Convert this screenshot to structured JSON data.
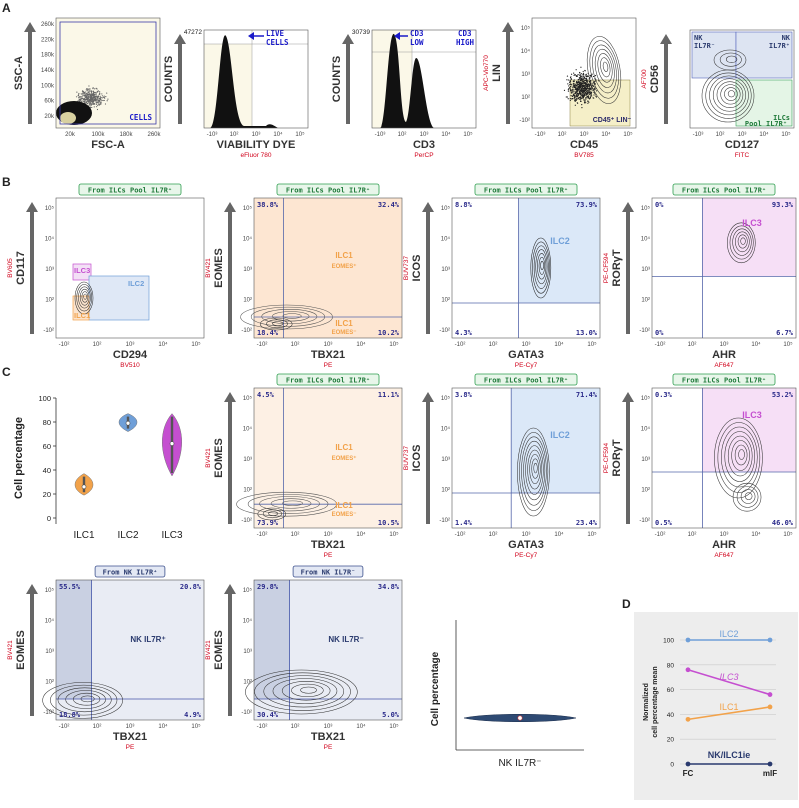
{
  "panel_letters": [
    "A",
    "B",
    "C",
    "D"
  ],
  "colors": {
    "ilc1": "#f2a24a",
    "ilc2": "#6f9fd8",
    "ilc3": "#c54fd0",
    "nk": "#2a3a6e",
    "red_label": "#d0021b",
    "blue_label": "#1a1ac9",
    "green_box": "#2e9e4f"
  },
  "panels": {
    "A": [
      {
        "yaxis": "SSC-A",
        "xaxis": "FSC-A",
        "yticks": [
          "260k",
          "220k",
          "180k",
          "140k",
          "100k",
          "60k",
          "20k"
        ],
        "xticks": [
          "20k",
          "100k",
          "180k",
          "260k"
        ],
        "gate": "CELLS"
      },
      {
        "yaxis": "COUNTS",
        "xaxis": "VIABILITY DYE",
        "sublabel": "eFluor 780",
        "ymax": "47272",
        "gate": "LIVE CELLS",
        "xticks": [
          "-10³",
          "10²",
          "10³",
          "10⁴",
          "10⁵"
        ]
      },
      {
        "yaxis": "COUNTS",
        "xaxis": "CD3",
        "sublabel": "PerCP",
        "ymax": "30739",
        "gate_low": "CD3 LOW",
        "gate_high": "CD3 HIGH",
        "xticks": [
          "-10³",
          "10²",
          "10³",
          "10⁴",
          "10⁵"
        ]
      },
      {
        "yaxis": "LIN",
        "ysublabel": "APC-Vio770",
        "xaxis": "CD45",
        "sublabel": "BV785",
        "gate": "CD45⁺ LIN⁻",
        "xticks": [
          "-10³",
          "10²",
          "10³",
          "10⁴",
          "10⁵"
        ]
      },
      {
        "yaxis": "CD56",
        "ysublabel": "AF700",
        "xaxis": "CD127",
        "sublabel": "FITC",
        "gate_nk_neg": "NK IL7R⁻",
        "gate_nk_pos": "NK IL7R⁺",
        "gate_pool": "Pool IL7R⁺",
        "gate_ilcs": "ILCs",
        "xticks": [
          "-10³",
          "10²",
          "10³",
          "10⁴",
          "10⁵"
        ]
      }
    ],
    "B": [
      {
        "header": "From ILCs Pool IL7R⁺",
        "yaxis": "CD117",
        "ysublabel": "BV605",
        "xaxis": "CD294",
        "sublabel": "BV510",
        "gates": [
          "ILC3",
          "ILC2",
          "ILC1"
        ]
      },
      {
        "header": "From ILCs Pool IL7R⁺",
        "yaxis": "EOMES",
        "ysublabel": "BV421",
        "xaxis": "TBX21",
        "sublabel": "PE",
        "q": [
          "38.8%",
          "32.4%",
          "18.4%",
          "10.2%"
        ],
        "gate1": "ILC1 EOMES⁺",
        "gate2": "ILC1 EOMES⁻"
      },
      {
        "header": "From ILCs Pool IL7R⁺",
        "yaxis": "ICOS",
        "ysublabel": "BUV737",
        "xaxis": "GATA3",
        "sublabel": "PE-Cy7",
        "q": [
          "8.8%",
          "73.9%",
          "4.3%",
          "13.0%"
        ],
        "gate": "ILC2"
      },
      {
        "header": "From ILCs Pool IL7R⁺",
        "yaxis": "RORγT",
        "ysublabel": "PE-CF594",
        "xaxis": "AHR",
        "sublabel": "AF647",
        "q": [
          "0%",
          "93.3%",
          "0%",
          "6.7%"
        ],
        "gate": "ILC3"
      }
    ],
    "C": [
      {
        "header": "From ILCs Pool IL7R⁺",
        "yaxis": "EOMES",
        "ysublabel": "BV421",
        "xaxis": "TBX21",
        "sublabel": "PE",
        "q": [
          "4.5%",
          "11.1%",
          "73.9%",
          "10.5%"
        ],
        "gate1": "ILC1 EOMES⁺",
        "gate2": "ILC1 EOMES⁻"
      },
      {
        "header": "From ILCs Pool IL7R⁺",
        "yaxis": "ICOS",
        "ysublabel": "BUV737",
        "xaxis": "GATA3",
        "sublabel": "PE-Cy7",
        "q": [
          "3.8%",
          "71.4%",
          "1.4%",
          "23.4%"
        ],
        "gate": "ILC2"
      },
      {
        "header": "From ILCs Pool IL7R⁺",
        "yaxis": "RORγT",
        "ysublabel": "PE-CF594",
        "xaxis": "AHR",
        "sublabel": "AF647",
        "q": [
          "0.3%",
          "53.2%",
          "0.5%",
          "46.0%"
        ],
        "gate": "ILC3"
      },
      {
        "header": "From NK IL7R⁺",
        "yaxis": "EOMES",
        "ysublabel": "BV421",
        "xaxis": "TBX21",
        "sublabel": "PE",
        "q": [
          "55.5%",
          "20.8%",
          "18.8%",
          "4.9%"
        ],
        "gate": "NK IL7R⁺"
      },
      {
        "header": "From NK IL7R⁻",
        "yaxis": "EOMES",
        "ysublabel": "BV421",
        "xaxis": "TBX21",
        "sublabel": "PE",
        "q": [
          "29.8%",
          "34.8%",
          "30.4%",
          "5.0%"
        ],
        "gate": "NK IL7R⁻"
      }
    ]
  },
  "log_ticks": [
    "10⁵",
    "10⁴",
    "10³",
    "10²",
    "-10²"
  ],
  "log_xticks": [
    "-10²",
    "10²",
    "10³",
    "10⁴",
    "10⁵"
  ],
  "chart_data": [
    {
      "type": "violin",
      "ylabel": "Cell percentage",
      "ylim": [
        0,
        100
      ],
      "yticks": [
        0,
        20,
        40,
        60,
        80,
        100
      ],
      "categories": [
        "ILC1",
        "ILC2",
        "ILC3"
      ],
      "series": [
        {
          "name": "ILC1",
          "median": 26,
          "min": 19,
          "max": 37
        },
        {
          "name": "ILC2",
          "median": 79,
          "min": 72,
          "max": 87
        },
        {
          "name": "ILC3",
          "median": 62,
          "min": 35,
          "max": 87
        }
      ]
    },
    {
      "type": "violin",
      "ylabel": "Cell percentage",
      "categories": [
        "NK IL7R⁻"
      ],
      "series": [
        {
          "name": "NK IL7R⁻",
          "median": 1,
          "min": 0,
          "max": 2
        }
      ]
    },
    {
      "type": "line",
      "ylabel": "Normalized cell percentage mean",
      "categories": [
        "FC",
        "mIF"
      ],
      "ylim": [
        0,
        100
      ],
      "yticks": [
        0,
        20,
        40,
        60,
        80,
        100
      ],
      "series": [
        {
          "name": "ILC2",
          "values": [
            100,
            100
          ]
        },
        {
          "name": "ILC3",
          "values": [
            76,
            56
          ]
        },
        {
          "name": "ILC1",
          "values": [
            36,
            46
          ]
        },
        {
          "name": "NK/ILC1ie",
          "values": [
            0,
            0
          ]
        }
      ]
    }
  ]
}
